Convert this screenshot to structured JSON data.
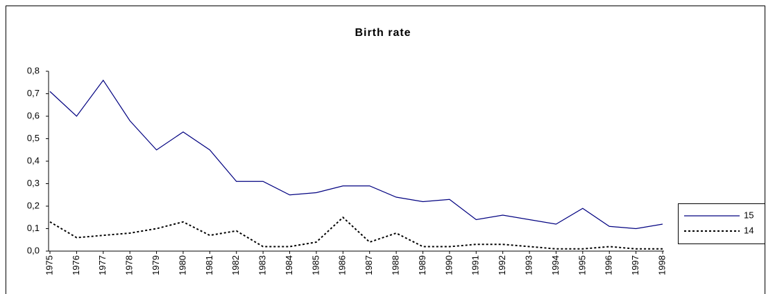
{
  "chart_data": {
    "type": "line",
    "title": "Birth rate",
    "categories": [
      "1975",
      "1976",
      "1977",
      "1978",
      "1979",
      "1980",
      "1981",
      "1982",
      "1983",
      "1984",
      "1985",
      "1986",
      "1987",
      "1988",
      "1989",
      "1990",
      "1991",
      "1992",
      "1993",
      "1994",
      "1995",
      "1996",
      "1997",
      "1998"
    ],
    "series": [
      {
        "name": "15",
        "color": "#000080",
        "dash": "solid",
        "values": [
          0.71,
          0.6,
          0.76,
          0.58,
          0.45,
          0.53,
          0.45,
          0.31,
          0.31,
          0.25,
          0.26,
          0.29,
          0.29,
          0.24,
          0.22,
          0.23,
          0.14,
          0.16,
          0.14,
          0.12,
          0.19,
          0.11,
          0.1,
          0.12
        ]
      },
      {
        "name": "14",
        "color": "#000000",
        "dash": "dotted",
        "values": [
          0.13,
          0.06,
          0.07,
          0.08,
          0.1,
          0.13,
          0.07,
          0.09,
          0.02,
          0.02,
          0.04,
          0.15,
          0.04,
          0.08,
          0.02,
          0.02,
          0.03,
          0.03,
          0.02,
          0.01,
          0.01,
          0.02,
          0.01,
          0.01
        ]
      }
    ],
    "ylim": [
      0,
      0.8
    ],
    "yticks": [
      {
        "value": 0,
        "label": "0,0"
      },
      {
        "value": 0.1,
        "label": "0,1"
      },
      {
        "value": 0.2,
        "label": "0,2"
      },
      {
        "value": 0.3,
        "label": "0,3"
      },
      {
        "value": 0.4,
        "label": "0,4"
      },
      {
        "value": 0.5,
        "label": "0,5"
      },
      {
        "value": 0.6,
        "label": "0,6"
      },
      {
        "value": 0.7,
        "label": "0,7"
      },
      {
        "value": 0.8,
        "label": "0,8"
      }
    ],
    "grid": false,
    "legend": "right"
  }
}
